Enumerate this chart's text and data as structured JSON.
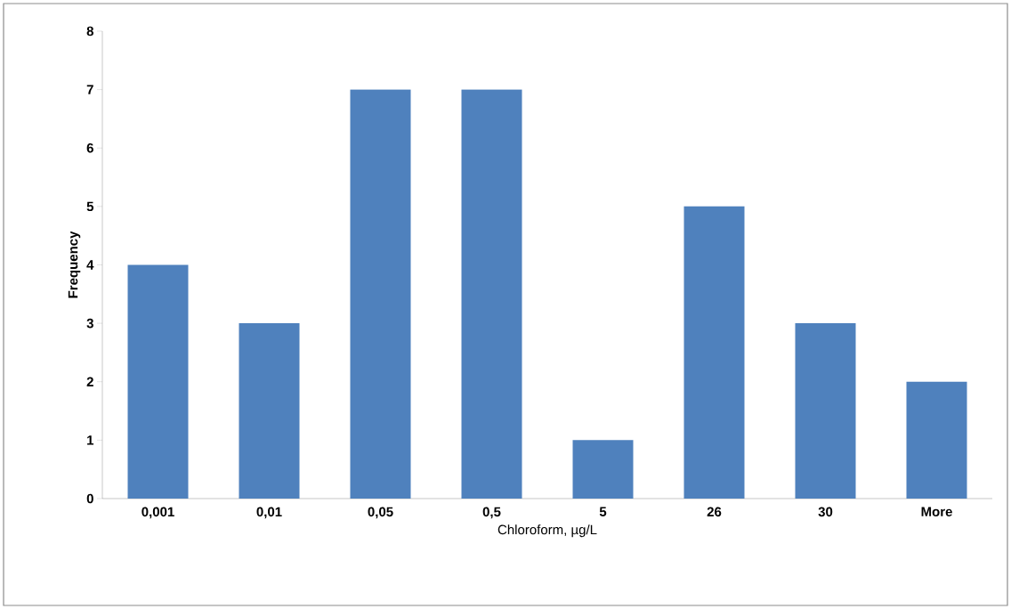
{
  "chart_data": {
    "type": "bar",
    "xlabel": "Chloroform, µg/L",
    "ylabel": "Frequency",
    "categories": [
      "0,001",
      "0,01",
      "0,05",
      "0,5",
      "5",
      "26",
      "30",
      "More"
    ],
    "values": [
      4,
      3,
      7,
      7,
      1,
      5,
      3,
      2
    ],
    "color": "#4f81bd",
    "ylim": [
      0,
      8
    ],
    "yticks": [
      0,
      1,
      2,
      3,
      4,
      5,
      6,
      7,
      8
    ],
    "grid": false
  }
}
